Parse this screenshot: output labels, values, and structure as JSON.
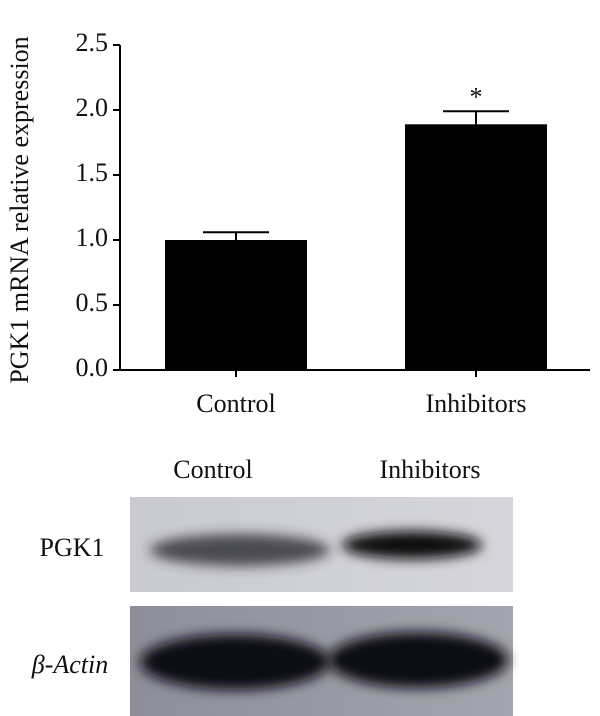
{
  "chart_data": {
    "type": "bar",
    "ylabel": "PGK1 mRNA relative expression",
    "categories": [
      "Control",
      "Inhibitors"
    ],
    "values": [
      1.0,
      1.89
    ],
    "errors": [
      0.06,
      0.1
    ],
    "annotations": [
      {
        "category": 1,
        "text": "*"
      }
    ],
    "color": "#000000",
    "ylim": [
      0,
      2.5
    ],
    "yticks": [
      {
        "value": 0,
        "label": "0.0"
      },
      {
        "value": 0.5,
        "label": "0.5"
      },
      {
        "value": 1,
        "label": "1.0"
      },
      1.5,
      {
        "value": 2,
        "label": "2.0"
      },
      2.5
    ]
  },
  "blot": {
    "lanes": [
      "Control",
      "Inhibitors"
    ],
    "rows": [
      {
        "label": "PGK1"
      },
      {
        "label": "β-Actin"
      }
    ]
  }
}
